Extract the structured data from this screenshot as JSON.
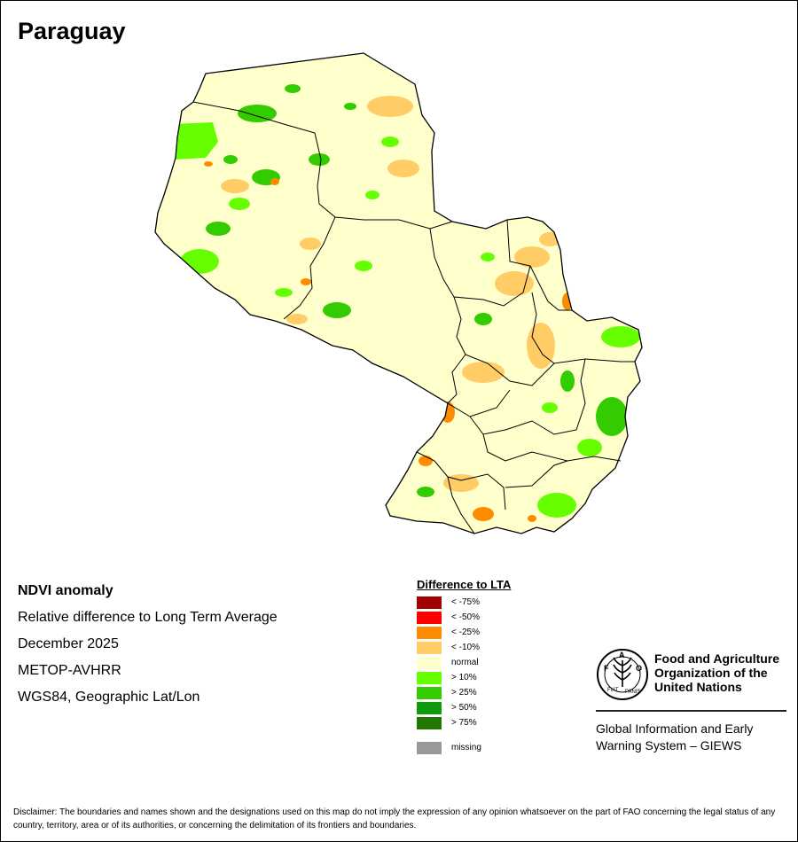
{
  "title": "Paraguay",
  "info": {
    "product": "NDVI anomaly",
    "description": "Relative difference to Long Term Average",
    "period": "December 2025",
    "sensor": "METOP-AVHRR",
    "projection": "WGS84, Geographic Lat/Lon"
  },
  "legend": {
    "title": "Difference to LTA",
    "items": [
      {
        "label": "< -75%",
        "color": "#a00000"
      },
      {
        "label": "< -50%",
        "color": "#ff0000"
      },
      {
        "label": "< -25%",
        "color": "#ff8c00"
      },
      {
        "label": "< -10%",
        "color": "#ffcc66"
      },
      {
        "label": "normal",
        "color": "#ffffcc"
      },
      {
        "label": "> 10%",
        "color": "#66ff00"
      },
      {
        "label": "> 25%",
        "color": "#33cc00"
      },
      {
        "label": "> 50%",
        "color": "#119911"
      },
      {
        "label": "> 75%",
        "color": "#227700"
      }
    ],
    "missing": {
      "label": "missing",
      "color": "#999999"
    }
  },
  "logo": {
    "org_name": "Food and Agriculture Organization of the United Nations",
    "seal_text": "FAO FIAT PANIS",
    "system_name": "Global Information and Early Warning System – GIEWS"
  },
  "disclaimer": "Disclaimer: The boundaries and names shown and the designations used on this map do not imply the expression of any opinion whatsoever on the part of FAO concerning the legal status of any country, territory, area or of its authorities, or concerning the delimitation of its frontiers and boundaries."
}
